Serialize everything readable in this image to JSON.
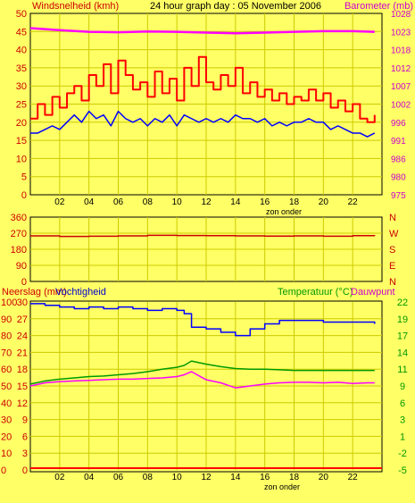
{
  "chart_data": [
    {
      "type": "line",
      "title": "24 hour graph day : 05 November 2006",
      "ylabel_left": "Windsnelheid (kmh)",
      "ylabel_right": "Barometer (mb)",
      "x_tick_labels": [
        "02",
        "04",
        "06",
        "08",
        "10",
        "12",
        "14",
        "16",
        "18",
        "20",
        "22"
      ],
      "x_axis_label": "zon onder",
      "y_left_ticks": [
        "50",
        "45",
        "40",
        "35",
        "30",
        "25",
        "20",
        "15",
        "10",
        "5",
        "0"
      ],
      "y_right_ticks": [
        "1028",
        "1023",
        "1018",
        "1012",
        "1007",
        "1002",
        "996",
        "991",
        "986",
        "980",
        "975"
      ],
      "ylim_left": [
        0,
        50
      ],
      "ylim_right": [
        975,
        1028
      ],
      "xlim_hours": [
        0,
        24
      ],
      "series": [
        {
          "key": "gust",
          "color": "#ff0000",
          "x": [
            0,
            0.5,
            1,
            1.5,
            2,
            2.5,
            3,
            3.5,
            4,
            4.5,
            5,
            5.5,
            6,
            6.5,
            7,
            7.5,
            8,
            8.5,
            9,
            9.5,
            10,
            10.5,
            11,
            11.5,
            12,
            12.5,
            13,
            13.5,
            14,
            14.5,
            15,
            15.5,
            16,
            16.5,
            17,
            17.5,
            18,
            18.5,
            19,
            19.5,
            20,
            20.5,
            21,
            21.5,
            22,
            22.5,
            23,
            23.5
          ],
          "values": [
            21,
            25,
            22,
            27,
            24,
            28,
            30,
            26,
            33,
            30,
            36,
            28,
            37,
            33,
            29,
            31,
            27,
            34,
            28,
            32,
            26,
            35,
            30,
            38,
            31,
            29,
            33,
            30,
            35,
            28,
            31,
            27,
            29,
            26,
            28,
            25,
            27,
            26,
            29,
            26,
            28,
            24,
            26,
            23,
            25,
            21,
            20,
            22
          ]
        },
        {
          "key": "wind",
          "color": "#0000ff",
          "x": [
            0,
            0.5,
            1,
            1.5,
            2,
            2.5,
            3,
            3.5,
            4,
            4.5,
            5,
            5.5,
            6,
            6.5,
            7,
            7.5,
            8,
            8.5,
            9,
            9.5,
            10,
            10.5,
            11,
            11.5,
            12,
            12.5,
            13,
            13.5,
            14,
            14.5,
            15,
            15.5,
            16,
            16.5,
            17,
            17.5,
            18,
            18.5,
            19,
            19.5,
            20,
            20.5,
            21,
            21.5,
            22,
            22.5,
            23,
            23.5
          ],
          "values": [
            17,
            17,
            18,
            19,
            18,
            20,
            22,
            20,
            23,
            21,
            22,
            19,
            23,
            21,
            20,
            21,
            19,
            21,
            20,
            22,
            19,
            22,
            21,
            20,
            21,
            20,
            21,
            20,
            22,
            21,
            21,
            20,
            21,
            19,
            20,
            19,
            20,
            20,
            21,
            20,
            20,
            18,
            19,
            18,
            17,
            17,
            16,
            17
          ]
        },
        {
          "key": "baro",
          "color": "#ff00ff",
          "axis": "right",
          "x": [
            0,
            2,
            4,
            6,
            8,
            10,
            12,
            14,
            16,
            18,
            20,
            22,
            23.5
          ],
          "values": [
            1023.7,
            1023.1,
            1022.6,
            1022.5,
            1022.7,
            1022.6,
            1022.4,
            1022.2,
            1022.4,
            1022.6,
            1022.8,
            1022.8,
            1022.6
          ]
        }
      ]
    },
    {
      "type": "line",
      "left_ticks": [
        "360",
        "270",
        "180",
        "90",
        "0"
      ],
      "right_letters": [
        "N",
        "W",
        "S",
        "E",
        "N"
      ],
      "ylim": [
        0,
        360
      ],
      "x_tick_labels": [
        "02",
        "04",
        "06",
        "08",
        "10",
        "12",
        "14",
        "16",
        "18",
        "20",
        "22"
      ],
      "series": [
        {
          "key": "dir",
          "color": "#cc0000",
          "x": [
            0,
            2,
            4,
            6,
            8,
            10,
            12,
            14,
            16,
            18,
            20,
            22,
            23.5
          ],
          "values": [
            255,
            252,
            253,
            255,
            258,
            257,
            256,
            255,
            254,
            255,
            253,
            256,
            255
          ]
        }
      ]
    },
    {
      "type": "line",
      "label_left_1": "Neerslag (mm)",
      "label_left_2": "Vochtigheid",
      "label_right_1": "Temperatuur (°C)",
      "label_right_2": "Dauwpunt",
      "y_left_ticks_outer": [
        "100",
        "90",
        "80",
        "70",
        "60",
        "50",
        "40",
        "30",
        "20",
        "10",
        "0"
      ],
      "y_left_ticks_inner": [
        "30",
        "27",
        "24",
        "21",
        "18",
        "15",
        "12",
        "9",
        "6",
        "3",
        "0"
      ],
      "y_right_ticks": [
        "22",
        "19",
        "17",
        "14",
        "11",
        "9",
        "6",
        "3",
        "1",
        "-2",
        "-5"
      ],
      "ylim_humidity": [
        0,
        100
      ],
      "ylim_temperature": [
        -5,
        22
      ],
      "x_tick_labels": [
        "02",
        "04",
        "06",
        "08",
        "10",
        "12",
        "14",
        "16",
        "18",
        "20",
        "22"
      ],
      "x_axis_label": "zon onder",
      "series": [
        {
          "key": "humidity",
          "color": "#0000ff",
          "axis": "humidity",
          "x": [
            0,
            1,
            2,
            3,
            4,
            5,
            6,
            7,
            8,
            9,
            10,
            10.5,
            11,
            12,
            13,
            14,
            15,
            16,
            17,
            18,
            19,
            20,
            21,
            22,
            23,
            23.5
          ],
          "values": [
            99,
            98,
            97,
            96,
            97,
            96,
            97,
            96,
            95,
            96,
            95,
            93,
            85,
            84,
            82,
            80,
            84,
            87,
            89,
            89,
            89,
            88,
            88,
            88,
            88,
            87
          ]
        },
        {
          "key": "temperature",
          "color": "#009900",
          "axis": "temperature",
          "x": [
            0,
            1,
            2,
            3,
            4,
            5,
            6,
            7,
            8,
            9,
            10,
            10.5,
            11,
            12,
            13,
            14,
            15,
            16,
            17,
            18,
            19,
            20,
            21,
            22,
            23,
            23.5
          ],
          "values": [
            8.8,
            9.3,
            9.6,
            9.8,
            10.0,
            10.1,
            10.3,
            10.5,
            10.8,
            11.2,
            11.5,
            11.8,
            12.5,
            12.0,
            11.6,
            11.3,
            11.2,
            11.2,
            11.1,
            11.0,
            11.0,
            11.0,
            11.0,
            11.0,
            11.0,
            11.0
          ]
        },
        {
          "key": "dewpoint",
          "color": "#ff00ff",
          "axis": "temperature",
          "x": [
            0,
            1,
            2,
            3,
            4,
            5,
            6,
            7,
            8,
            9,
            10,
            10.5,
            11,
            12,
            13,
            14,
            15,
            16,
            17,
            18,
            19,
            20,
            21,
            22,
            23,
            23.5
          ],
          "values": [
            8.5,
            9.0,
            9.2,
            9.3,
            9.4,
            9.5,
            9.6,
            9.6,
            9.7,
            9.8,
            10.0,
            10.3,
            10.8,
            9.5,
            9.0,
            8.2,
            8.5,
            8.8,
            9.0,
            9.1,
            9.1,
            9.0,
            9.1,
            8.9,
            9.0,
            9.0
          ]
        },
        {
          "key": "rain",
          "color": "#ff0000",
          "axis": "rain",
          "x": [
            0,
            24
          ],
          "values": [
            0,
            0
          ]
        }
      ]
    }
  ]
}
